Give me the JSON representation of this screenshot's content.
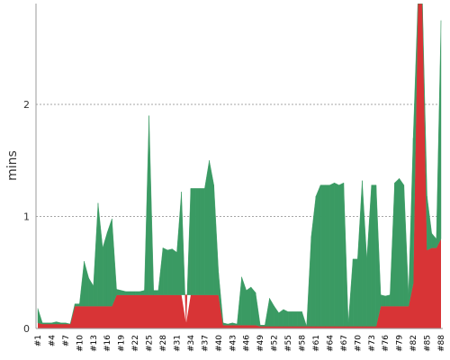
{
  "chart_data": {
    "type": "area",
    "ylabel": "mins",
    "x_tick_labels": [
      "#1",
      "#4",
      "#7",
      "#10",
      "#13",
      "#16",
      "#19",
      "#22",
      "#25",
      "#28",
      "#31",
      "#34",
      "#37",
      "#40",
      "#43",
      "#46",
      "#49",
      "#52",
      "#55",
      "#58",
      "#61",
      "#64",
      "#67",
      "#70",
      "#73",
      "#76",
      "#79",
      "#82",
      "#85",
      "#88"
    ],
    "y_tick_labels": [
      "0",
      "1",
      "2"
    ],
    "y_ticks": [
      0,
      1,
      2
    ],
    "ylim": [
      0,
      2.9
    ],
    "xlim": [
      1,
      88
    ],
    "grid": "horizontal-dotted",
    "colors": {
      "above": "#3a9a63",
      "below": "#d83436",
      "axis": "#999999",
      "grid": "#888888"
    },
    "series": [
      {
        "x": [
          1,
          2,
          3,
          4,
          5,
          6,
          7,
          8,
          9,
          10,
          11,
          12,
          13,
          14,
          15,
          16,
          17,
          18,
          19,
          20,
          21,
          22,
          23,
          24,
          25,
          26,
          27,
          28,
          29,
          30,
          31,
          32,
          33,
          34,
          35,
          36,
          37,
          38,
          39,
          40,
          41,
          42,
          43,
          44,
          45,
          46,
          47,
          48,
          49,
          50,
          51,
          52,
          53,
          54,
          55,
          56,
          57,
          58,
          59,
          60,
          61,
          62,
          63,
          64,
          65,
          66,
          67,
          68,
          69,
          70,
          71,
          72,
          73,
          74,
          75,
          76,
          77,
          78,
          79,
          80,
          81,
          82,
          83,
          84,
          85,
          86,
          87,
          88
        ],
        "y": [
          0.18,
          0.05,
          0.05,
          0.05,
          0.06,
          0.05,
          0.05,
          0.04,
          0.22,
          0.22,
          0.6,
          0.45,
          0.38,
          1.12,
          0.72,
          0.86,
          0.98,
          0.35,
          0.34,
          0.33,
          0.33,
          0.33,
          0.33,
          0.34,
          1.9,
          0.34,
          0.34,
          0.72,
          0.7,
          0.71,
          0.68,
          1.22,
          0.04,
          1.25,
          1.25,
          1.25,
          1.25,
          1.5,
          1.28,
          0.5,
          0.05,
          0.04,
          0.05,
          0.04,
          0.46,
          0.34,
          0.37,
          0.32,
          0.03,
          0.03,
          0.27,
          0.2,
          0.14,
          0.17,
          0.15,
          0.15,
          0.15,
          0.15,
          0.02,
          0.82,
          1.18,
          1.28,
          1.28,
          1.28,
          1.3,
          1.28,
          1.3,
          0.05,
          0.62,
          0.62,
          1.32,
          0.62,
          1.28,
          1.28,
          0.3,
          0.29,
          0.3,
          1.3,
          1.34,
          1.28,
          0.3,
          1.7,
          2.9,
          2.9,
          1.18,
          0.85,
          0.8,
          2.75
        ]
      },
      {
        "x": [
          1,
          2,
          3,
          4,
          5,
          6,
          7,
          8,
          9,
          10,
          11,
          12,
          13,
          14,
          15,
          16,
          17,
          18,
          19,
          20,
          21,
          22,
          23,
          24,
          25,
          26,
          27,
          28,
          29,
          30,
          31,
          32,
          33,
          34,
          35,
          36,
          37,
          38,
          39,
          40,
          41,
          42,
          43,
          44,
          45,
          46,
          47,
          48,
          49,
          50,
          51,
          52,
          53,
          54,
          55,
          56,
          57,
          58,
          59,
          60,
          61,
          62,
          63,
          64,
          65,
          66,
          67,
          68,
          69,
          70,
          71,
          72,
          73,
          74,
          75,
          76,
          77,
          78,
          79,
          80,
          81,
          82,
          83,
          84,
          85,
          86,
          87,
          88
        ],
        "y": [
          0.05,
          0.04,
          0.04,
          0.04,
          0.04,
          0.04,
          0.04,
          0.04,
          0.2,
          0.2,
          0.2,
          0.2,
          0.2,
          0.2,
          0.2,
          0.2,
          0.2,
          0.3,
          0.3,
          0.3,
          0.3,
          0.3,
          0.3,
          0.3,
          0.3,
          0.3,
          0.3,
          0.3,
          0.3,
          0.3,
          0.3,
          0.3,
          0.3,
          0.3,
          0.3,
          0.3,
          0.3,
          0.3,
          0.3,
          0.3,
          0.03,
          0.03,
          0.03,
          0.03,
          0.03,
          0.03,
          0.03,
          0.03,
          0.02,
          0.02,
          0.02,
          0.02,
          0.02,
          0.02,
          0.02,
          0.02,
          0.02,
          0.02,
          0.02,
          0.02,
          0.02,
          0.02,
          0.02,
          0.02,
          0.02,
          0.02,
          0.02,
          0.02,
          0.02,
          0.02,
          0.02,
          0.02,
          0.02,
          0.02,
          0.2,
          0.2,
          0.2,
          0.2,
          0.2,
          0.2,
          0.2,
          0.4,
          2.9,
          2.9,
          0.7,
          0.72,
          0.72,
          0.8
        ]
      }
    ]
  }
}
